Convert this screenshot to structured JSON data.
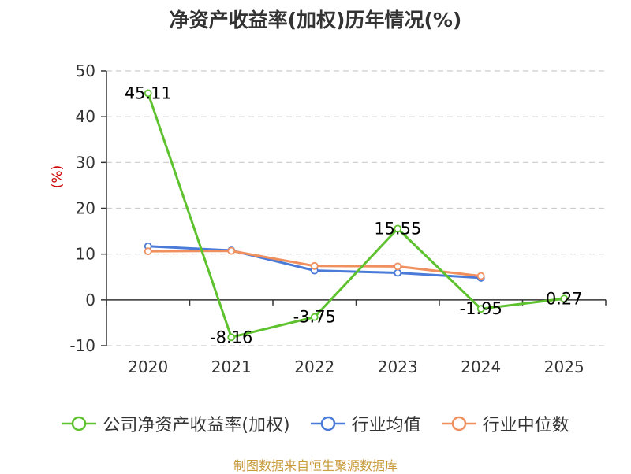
{
  "chart_data": {
    "type": "line",
    "title": "净资产收益率(加权)历年情况(%)",
    "ylabel": "(%)",
    "xlabel": "",
    "categories": [
      "2020",
      "2021",
      "2022",
      "2023",
      "2024",
      "2025"
    ],
    "ylim": [
      -10,
      50
    ],
    "yticks": [
      50,
      40,
      30,
      20,
      10,
      0,
      -10
    ],
    "grid": true,
    "legend_position": "bottom",
    "series": [
      {
        "name": "公司净资产收益率(加权)",
        "color": "#5dc22e",
        "values": [
          45.11,
          -8.16,
          -3.75,
          15.55,
          -1.95,
          0.27
        ],
        "labels": [
          "45.11",
          "-8.16",
          "-3.75",
          "15.55",
          "-1.95",
          "0.27"
        ]
      },
      {
        "name": "行业均值",
        "color": "#4a7bd8",
        "values": [
          11.7,
          10.8,
          6.4,
          5.9,
          4.8,
          null
        ]
      },
      {
        "name": "行业中位数",
        "color": "#f0905e",
        "values": [
          10.6,
          10.7,
          7.4,
          7.3,
          5.2,
          null
        ]
      }
    ],
    "source": "制图数据来自恒生聚源数据库"
  }
}
